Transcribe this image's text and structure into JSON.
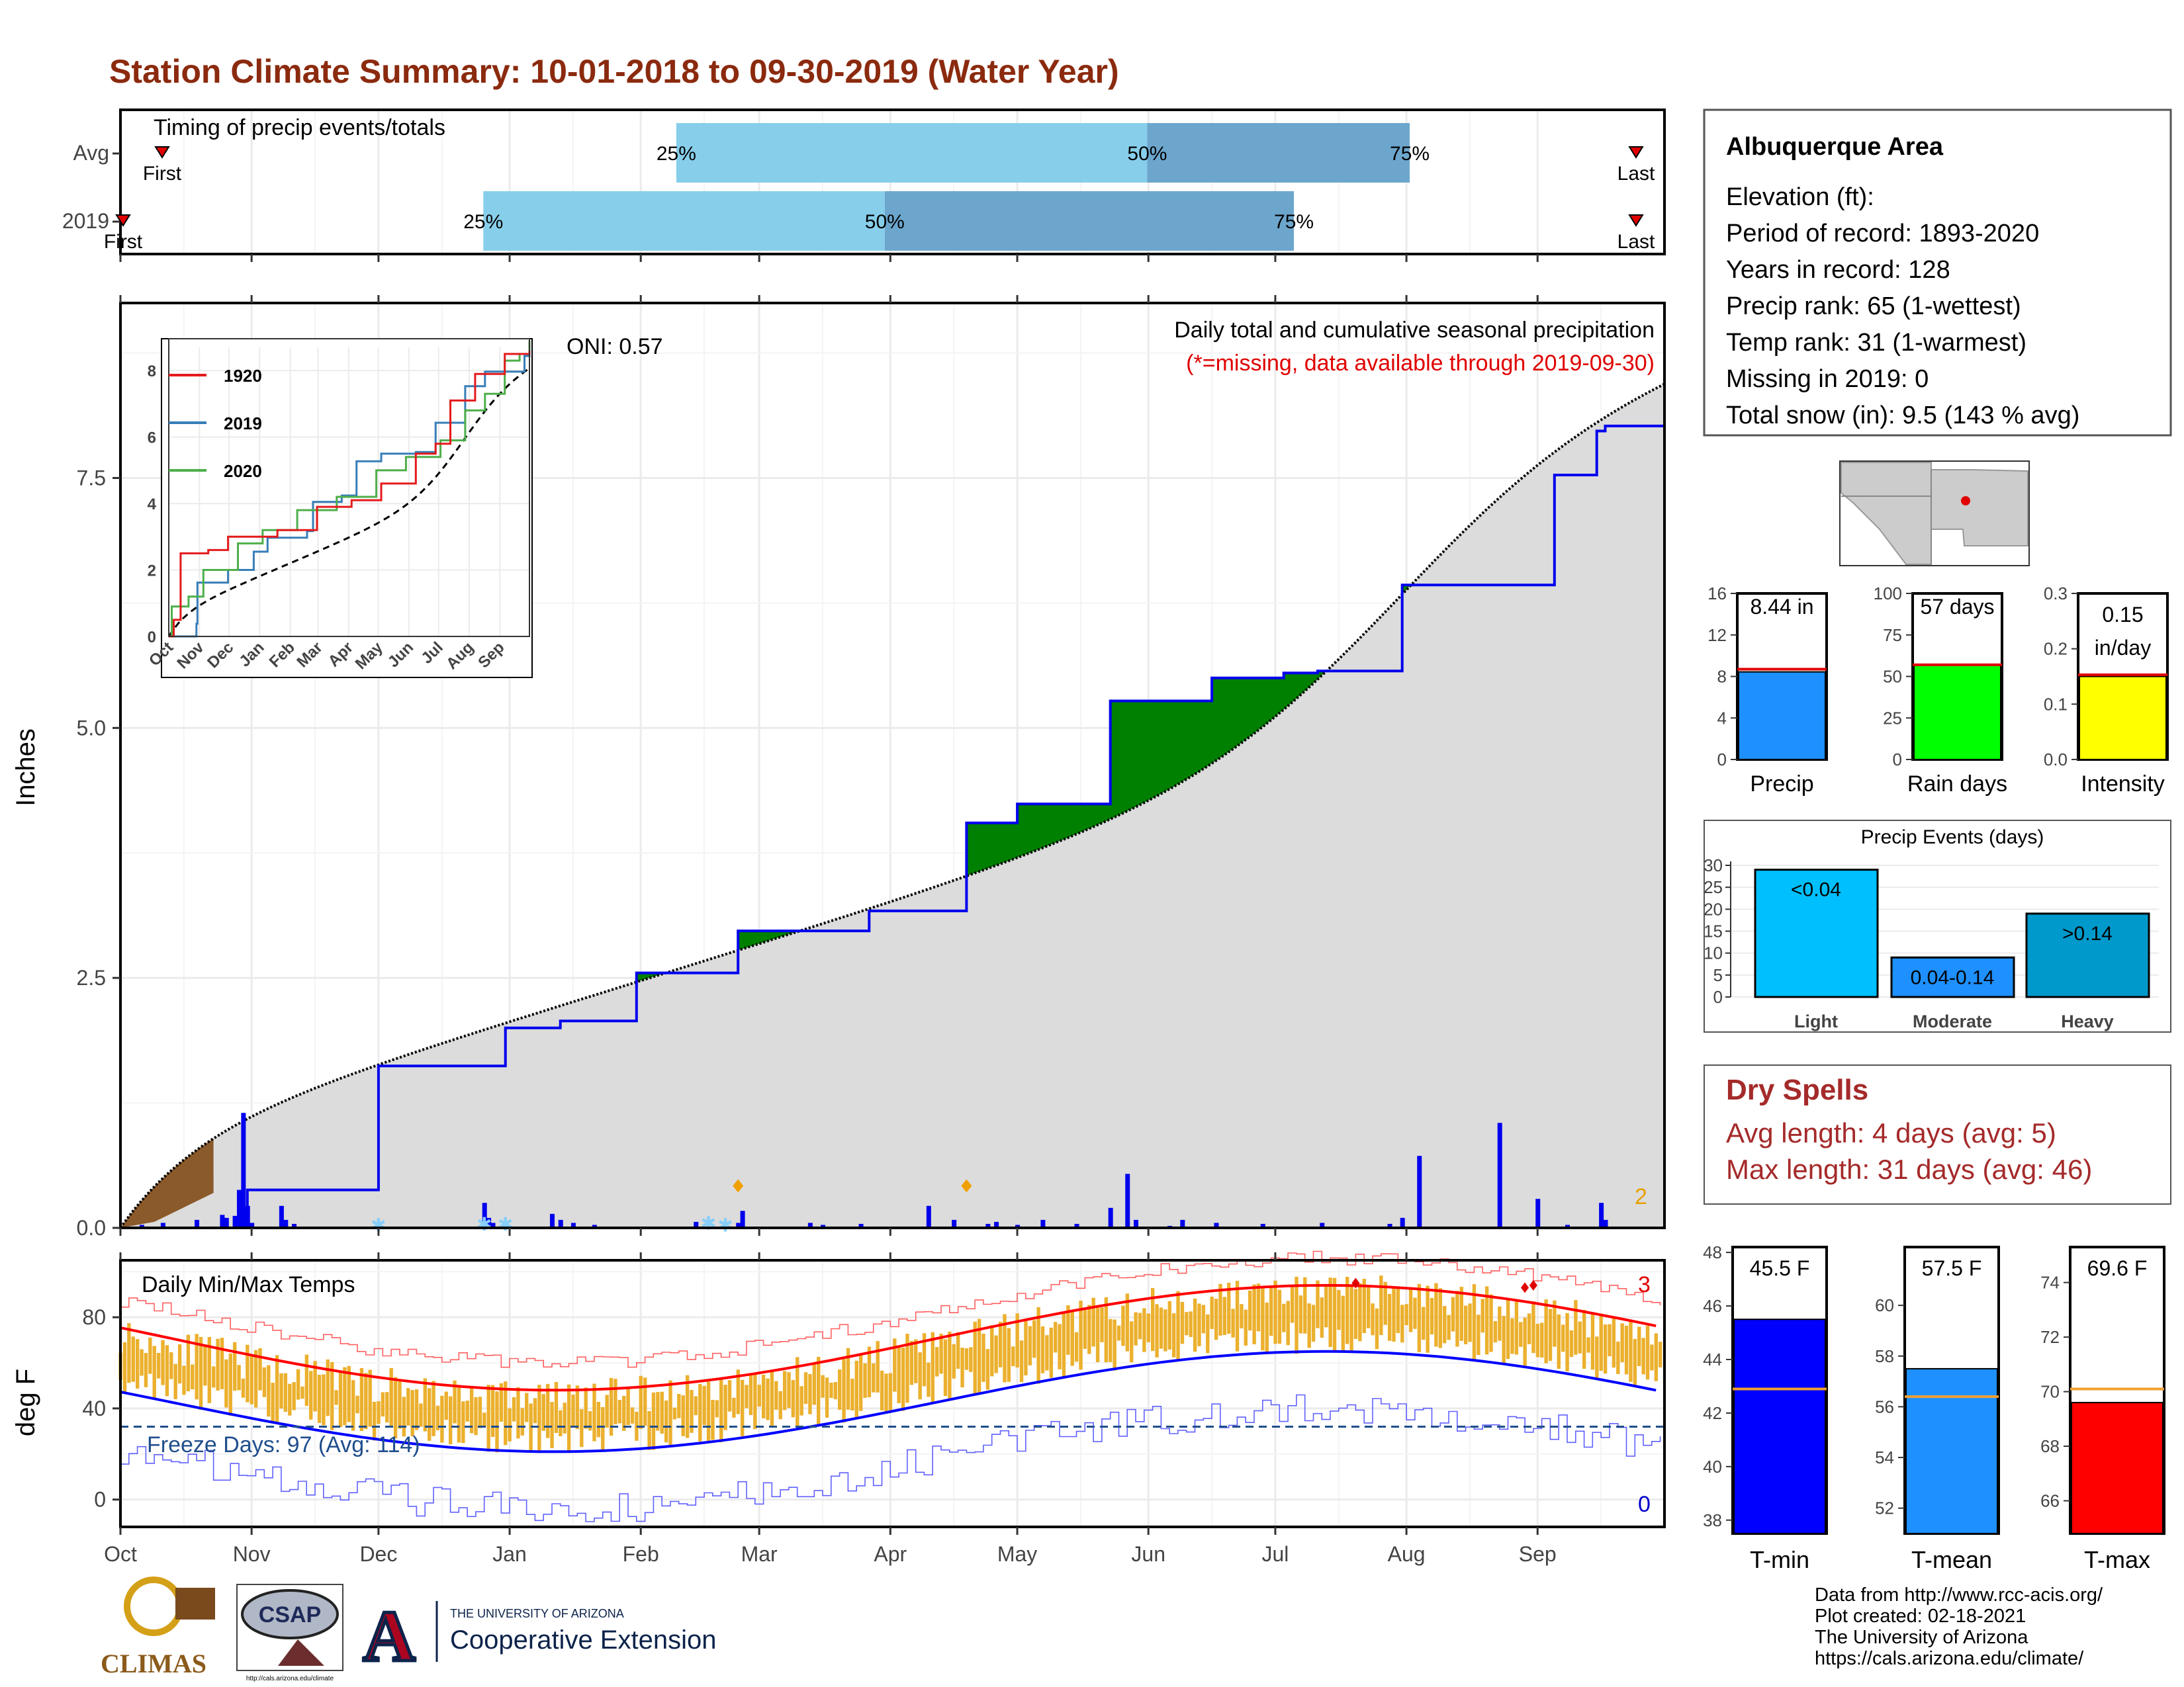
{
  "title": "Station Climate Summary: 10-01-2018 to 09-30-2019 (Water Year)",
  "colors": {
    "title": "#8B2A0E",
    "green": "#008000",
    "blue": "#0000EE",
    "climo": "#DCDCDC",
    "tmin": "#0000FF",
    "tmean": "#1E90FF",
    "tmax": "#FF0000",
    "tminmax": "#EBB02E",
    "dry": "#A52A2A"
  },
  "timing": {
    "label": "Timing of precip events/totals",
    "rows": [
      {
        "name": "Avg",
        "first": "First",
        "last": "Last",
        "p25": "25%",
        "p50": "50%",
        "p75": "75%",
        "q": [
          0.36,
          0.665,
          0.835
        ]
      },
      {
        "name": "2019",
        "first": "First",
        "last": "Last",
        "p25": "25%",
        "p50": "50%",
        "p75": "75%",
        "q": [
          0.235,
          0.495,
          0.76
        ]
      }
    ]
  },
  "main": {
    "ylabel": "Inches",
    "yticks": [
      "0.0",
      "2.5",
      "5.0",
      "7.5"
    ],
    "ytick_values": [
      0,
      2.5,
      5.0,
      7.5
    ],
    "months": [
      "Oct",
      "Nov",
      "Dec",
      "Jan",
      "Feb",
      "Mar",
      "Apr",
      "May",
      "Jun",
      "Jul",
      "Aug",
      "Sep"
    ],
    "oni": "ONI: 0.57",
    "caption1": "Daily total and cumulative seasonal precipitation",
    "caption2": "(*=missing, data available through 2019-09-30)",
    "count_label": "2",
    "ylim": [
      0,
      9.25
    ],
    "chart_data": {
      "type": "area",
      "series": [
        {
          "name": "2019",
          "x_day": [
            0,
            30,
            61,
            91,
            104,
            122,
            146,
            177,
            200,
            212,
            234,
            258,
            275,
            283,
            303,
            339,
            349,
            351,
            365
          ],
          "values": [
            0.0,
            0.38,
            1.62,
            2.0,
            2.07,
            2.55,
            2.97,
            3.17,
            4.05,
            4.24,
            5.27,
            5.5,
            5.55,
            5.57,
            6.43,
            7.53,
            7.97,
            8.02,
            8.44
          ]
        }
      ],
      "climo_final": 8.44
    }
  },
  "inset": {
    "yticks": [
      "0",
      "2",
      "4",
      "6",
      "8"
    ],
    "months": [
      "Oct",
      "Nov",
      "Dec",
      "Jan",
      "Feb",
      "Mar",
      "Apr",
      "May",
      "Jun",
      "Jul",
      "Aug",
      "Sep"
    ],
    "legend": [
      {
        "name": "1920",
        "color": "#E41A1C"
      },
      {
        "name": "2019",
        "color": "#377EB8"
      },
      {
        "name": "2020",
        "color": "#4DAF4A"
      }
    ]
  },
  "temps": {
    "ylabel": "deg F",
    "label": "Daily Min/Max Temps",
    "yticks": [
      "0",
      "40",
      "80"
    ],
    "ytick_values": [
      0,
      40,
      80
    ],
    "freeze": "Freeze Days: 97 (Avg: 114)",
    "count_hot": "3",
    "count_cold": "0",
    "ylim": [
      -12,
      105
    ]
  },
  "info": {
    "heading": "Albuquerque Area",
    "lines": [
      "Elevation (ft):",
      "Period of record: 1893-2020",
      "Years in record: 128",
      "Precip rank: 65 (1-wettest)",
      "Temp rank: 31 (1-warmest)",
      "Missing in 2019: 0",
      "Total snow (in): 9.5 (143 % avg)"
    ]
  },
  "bars3": [
    {
      "name": "Precip",
      "value": 8.44,
      "label": "8.44 in",
      "avg": 8.7,
      "ymax": 16,
      "ticks": [
        "0",
        "4",
        "8",
        "12",
        "16"
      ],
      "color": "#1E90FF"
    },
    {
      "name": "Rain days",
      "value": 57,
      "label": "57 days",
      "avg": 57,
      "ymax": 100,
      "ticks": [
        "0",
        "25",
        "50",
        "75",
        "100"
      ],
      "color": "#00FF00"
    },
    {
      "name": "Intensity",
      "value": 0.15,
      "label": "0.15 in/day",
      "label1": "0.15",
      "label2": "in/day",
      "avg": 0.153,
      "ymax": 0.3,
      "ticks": [
        "0.0",
        "0.1",
        "0.2",
        "0.3"
      ],
      "color": "#FFFF00"
    }
  ],
  "events": {
    "title": "Precip Events (days)",
    "yticks": [
      "0",
      "5",
      "10",
      "15",
      "20",
      "25",
      "30"
    ],
    "ymax": 30,
    "bars": [
      {
        "cat": "Light",
        "label": "<0.04",
        "value": 29,
        "color": "#00BFFF"
      },
      {
        "cat": "Moderate",
        "label": "0.04-0.14",
        "value": 9,
        "color": "#1E90FF"
      },
      {
        "cat": "Heavy",
        "label": ">0.14",
        "value": 19,
        "color": "#0099CC"
      }
    ]
  },
  "dry": {
    "title": "Dry Spells",
    "line1": "Avg length: 4 days (avg: 5)",
    "line2": "Max length: 31 days (avg: 46)"
  },
  "temp3": [
    {
      "name": "T-min",
      "label": "45.5 F",
      "value": 45.5,
      "avg": 42.9,
      "ylim": [
        37.5,
        48.2
      ],
      "ticks": [
        "38",
        "40",
        "42",
        "44",
        "46",
        "48"
      ],
      "tickv": [
        38,
        40,
        42,
        44,
        46,
        48
      ],
      "color": "#0000FF"
    },
    {
      "name": "T-mean",
      "label": "57.5 F",
      "value": 57.5,
      "avg": 56.4,
      "ylim": [
        51,
        62.3
      ],
      "ticks": [
        "52",
        "54",
        "56",
        "58",
        "60"
      ],
      "tickv": [
        52,
        54,
        56,
        58,
        60
      ],
      "color": "#1E90FF"
    },
    {
      "name": "T-max",
      "label": "69.6 F",
      "value": 69.6,
      "avg": 70.1,
      "ylim": [
        64.8,
        75.3
      ],
      "ticks": [
        "66",
        "68",
        "70",
        "72",
        "74"
      ],
      "tickv": [
        66,
        68,
        70,
        72,
        74
      ],
      "color": "#FF0000"
    }
  ],
  "footer": {
    "lines": [
      "Data from http://www.rcc-acis.org/",
      "Plot created: 02-18-2021",
      "The University of Arizona",
      "https://cals.arizona.edu/climate/"
    ],
    "climas": "CLIMAS",
    "csap": "CSAP",
    "csap_url": "http://cals.arizona.edu/climate",
    "ua_small": "THE UNIVERSITY OF ARIZONA",
    "ua_big": "Cooperative Extension"
  }
}
